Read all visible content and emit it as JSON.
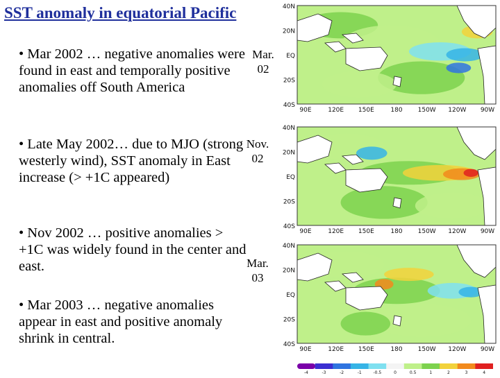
{
  "slide": {
    "title": "SST anomaly in equatorial Pacific",
    "bullets": [
      "• Mar 2002 … negative anomalies were found in east and temporally positive anomalies off South America",
      "• Late May 2002… due to MJO (strong westerly wind),  SST anomaly in East increase (> +1C appeared)",
      "• Nov 2002 … positive anomalies > +1C was widely found in the center and east.",
      "• Mar 2003 … negative anomalies appear in east and positive anomaly shrink in central."
    ],
    "maps": [
      {
        "month": "Mar.",
        "year": "02"
      },
      {
        "month": "Nov.",
        "year": "02"
      },
      {
        "month": "Mar.",
        "year": "03"
      }
    ],
    "lat_labels": [
      "40N",
      "20N",
      "EQ",
      "20S",
      "40S"
    ],
    "lon_labels": [
      "90E",
      "120E",
      "150E",
      "180",
      "150W",
      "120W",
      "90W"
    ],
    "colorbar_labels": [
      "-4",
      "-3",
      "-2",
      "-1",
      "-0.5",
      "0",
      "0.5",
      "1",
      "2",
      "3",
      "4"
    ],
    "colors": {
      "title": "#1f2f9c",
      "scale": [
        "#7a00a8",
        "#3b2fd1",
        "#2f74e0",
        "#36b4e6",
        "#7fe0f0",
        "#f4f4f4",
        "#bff08a",
        "#7dd24e",
        "#f2d23b",
        "#f28a1c",
        "#e02020"
      ]
    }
  }
}
